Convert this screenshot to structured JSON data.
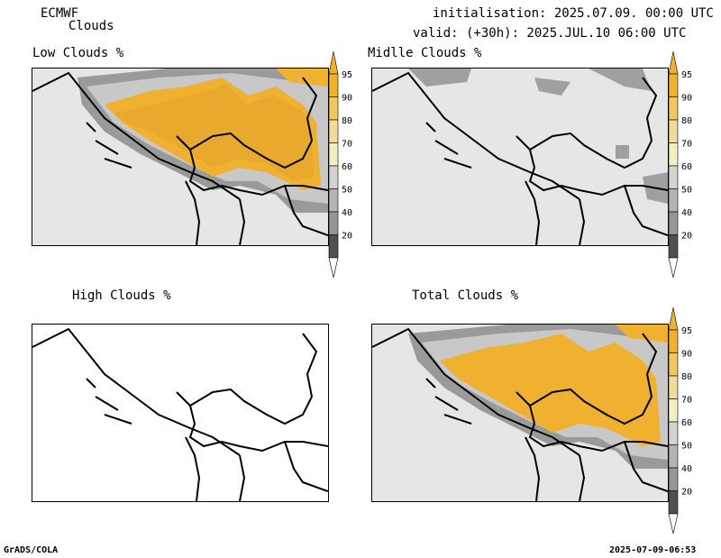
{
  "header": {
    "model": "ECMWF",
    "product": "Clouds",
    "init": "initialisation: 2025.07.09. 00:00 UTC",
    "valid": "valid: (+30h): 2025.JUL.10 06:00 UTC"
  },
  "panels": {
    "low": {
      "title": "Low Clouds %"
    },
    "mid": {
      "title": "Midlle Clouds %"
    },
    "high": {
      "title": "High Clouds %"
    },
    "total": {
      "title": "Total Clouds %"
    }
  },
  "colorbar": {
    "labels": [
      "95",
      "90",
      "80",
      "70",
      "60",
      "50",
      "40",
      "20"
    ],
    "colors": {
      "95": "#f0b030",
      "90": "#f0c860",
      "80": "#f0dc98",
      "70": "#f0f0c0",
      "60": "#d2d2d2",
      "50": "#b4b4b4",
      "40": "#969696",
      "20": "#505050",
      "below": "#ffffff"
    }
  },
  "footer": {
    "left": "GrADS/COLA",
    "right": "2025-07-09-06:53"
  }
}
